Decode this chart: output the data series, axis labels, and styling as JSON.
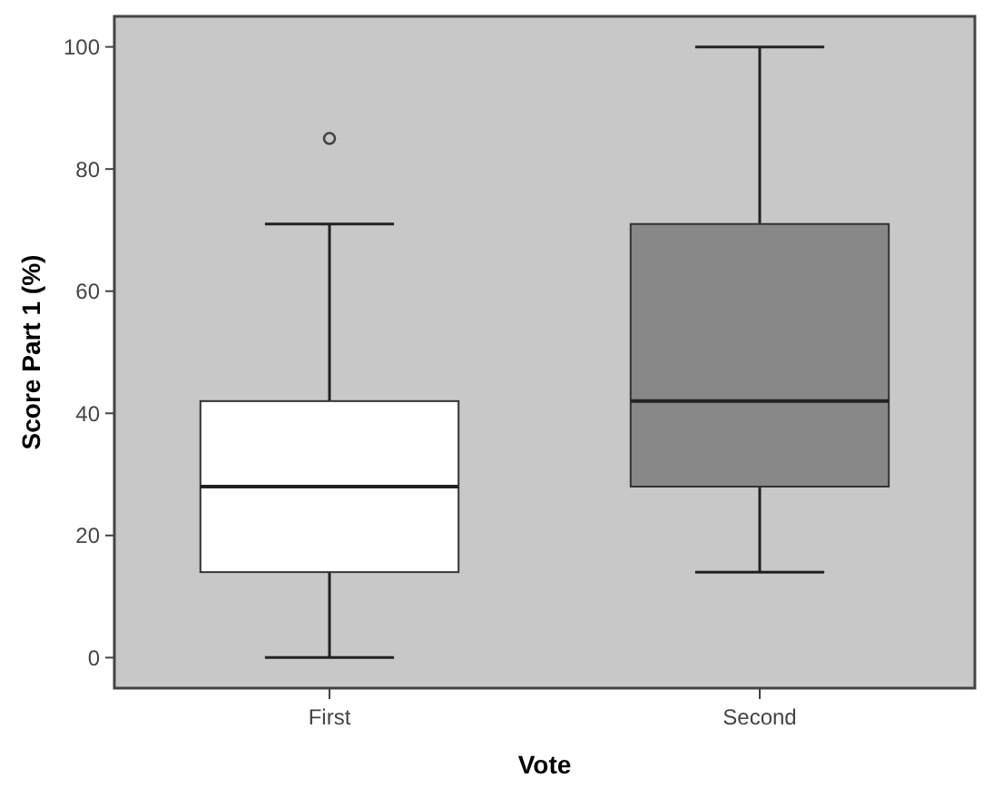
{
  "chart_data": {
    "type": "box",
    "xlabel": "Vote",
    "ylabel": "Score Part 1 (%)",
    "categories": [
      "First",
      "Second"
    ],
    "boxes": [
      {
        "low": 0,
        "q1": 14,
        "median": 28,
        "q3": 42,
        "high": 71,
        "outliers": [
          85
        ]
      },
      {
        "low": 14,
        "q1": 28,
        "median": 42,
        "q3": 71,
        "high": 100
      }
    ],
    "colors": [
      "#ffffff",
      "#888888"
    ],
    "ylim": [
      -5,
      105
    ],
    "yticks": [
      0,
      20,
      40,
      60,
      80,
      100
    ],
    "grid": false
  }
}
